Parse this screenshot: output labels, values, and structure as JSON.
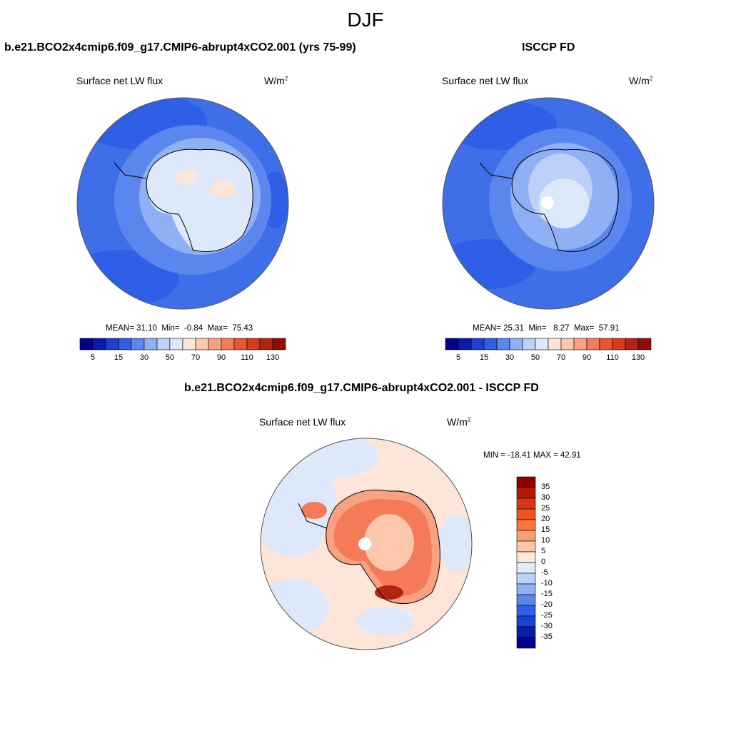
{
  "header": {
    "season": "DJF"
  },
  "panels": {
    "model": {
      "title": "b.e21.BCO2x4cmip6.f09_g17.CMIP6-abrupt4xCO2.001 (yrs 75-99)",
      "variable": "Surface net LW flux",
      "units_base": "W/m",
      "units_exp": "2",
      "stats": {
        "mean_label": "MEAN=",
        "mean": "31.10",
        "min_label": "Min=",
        "min": "-0.84",
        "max_label": "Max=",
        "max": "75.43"
      }
    },
    "obs": {
      "title": "ISCCP FD",
      "variable": "Surface net LW flux",
      "units_base": "W/m",
      "units_exp": "2",
      "stats": {
        "mean_label": "MEAN=",
        "mean": "25.31",
        "min_label": "Min=",
        "min": "8.27",
        "max_label": "Max=",
        "max": "57.91"
      }
    },
    "diff": {
      "title": "b.e21.BCO2x4cmip6.f09_g17.CMIP6-abrupt4xCO2.001 - ISCCP FD",
      "variable": "Surface net LW flux",
      "units": "W/m",
      "units_exp": "2",
      "minmax": "MIN = -18.41 MAX =  42.91"
    }
  },
  "colorbars": {
    "top_labels": [
      "5",
      "15",
      "30",
      "50",
      "70",
      "90",
      "110",
      "130"
    ],
    "top_colors": [
      "#00008c",
      "#0a1aaa",
      "#1b40d4",
      "#2f5fe6",
      "#5b86ee",
      "#8fb0f4",
      "#bcd0f8",
      "#dde9fb",
      "#fde5d7",
      "#fcc7ad",
      "#f9a283",
      "#f57a57",
      "#ec5330",
      "#d8391b",
      "#b32411",
      "#8c0e06"
    ],
    "diff_labels": [
      "35",
      "30",
      "25",
      "20",
      "15",
      "10",
      "5",
      "0",
      "-5",
      "-10",
      "-15",
      "-20",
      "-25",
      "-30",
      "-35"
    ],
    "diff_colors": [
      "#8c0000",
      "#b31a05",
      "#d83612",
      "#f0541e",
      "#f7763c",
      "#fa9e72",
      "#fcc7a6",
      "#fee8d8",
      "#e0ecfb",
      "#bcd1f8",
      "#8fb0f4",
      "#5b86ee",
      "#2f5fe6",
      "#1b40d4",
      "#0a1aaa",
      "#00008c"
    ]
  },
  "map_colors": {
    "deep_blue": "#2f5fe6",
    "mid_blue": "#3f6ee9",
    "light_blue": "#8fb0f4",
    "pale_blue": "#dde9fb",
    "pale_orange": "#fde5d7",
    "orange": "#f57a57",
    "dark_red": "#b32411"
  }
}
